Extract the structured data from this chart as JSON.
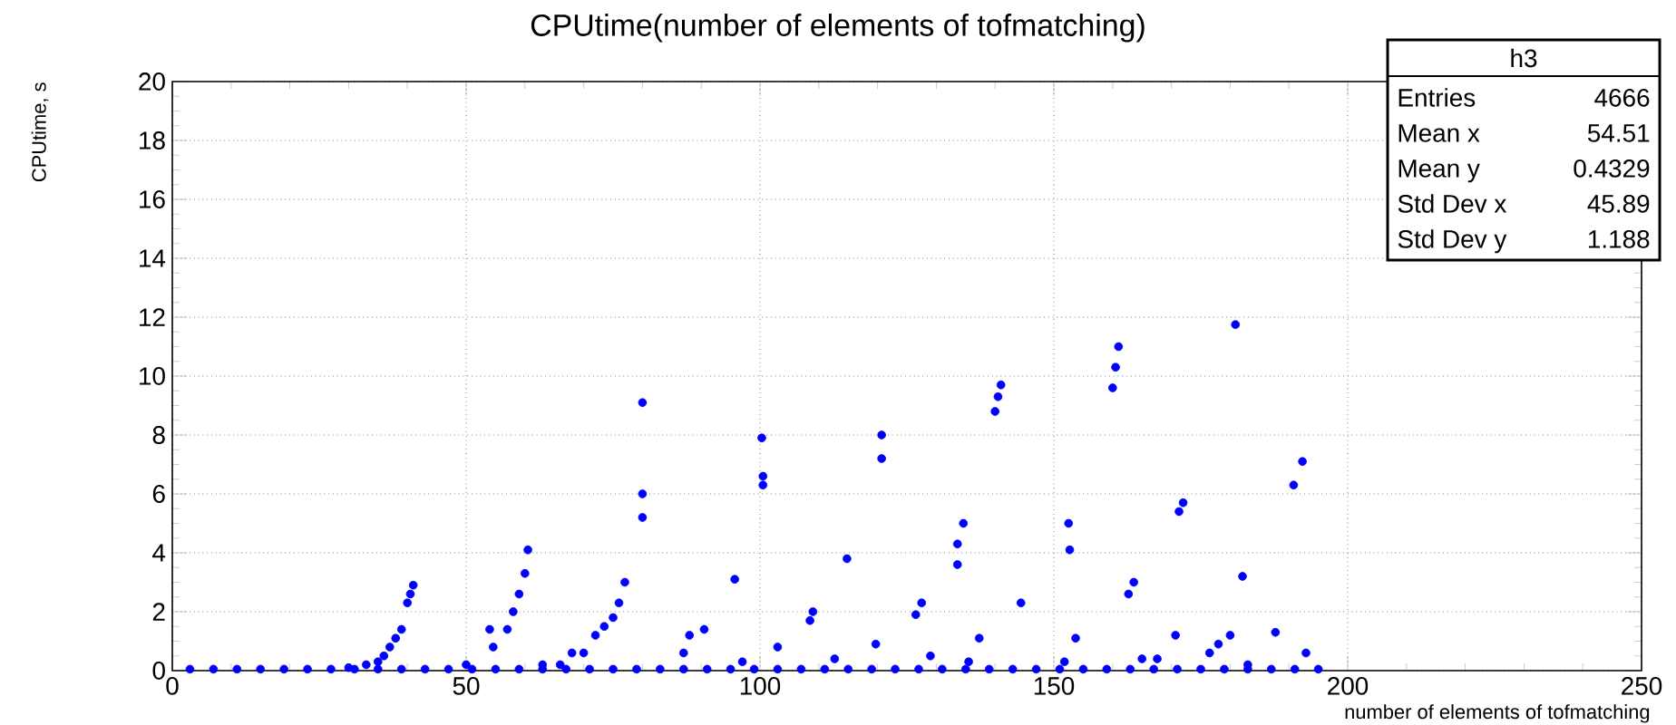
{
  "chart_data": {
    "type": "scatter",
    "title": "CPUtime(number of elements of tofmatching)",
    "xlabel": "number of elements of tofmatching",
    "ylabel": "CPUtime, s",
    "annotations": [
      "h3",
      "Entries",
      "4666",
      "Mean x",
      "54.51",
      "Mean y",
      "0.4329",
      "Std Dev x",
      "45.89",
      "Std Dev y",
      "1.188"
    ],
    "xlim": [
      0,
      250
    ],
    "xticks": [
      0,
      50,
      100,
      150,
      200,
      250
    ],
    "ylim": [
      0,
      20
    ],
    "yticks": [
      0,
      2,
      4,
      6,
      8,
      10,
      12,
      14,
      16,
      18,
      20
    ],
    "grid": true,
    "marker": "circle",
    "series": [
      {
        "color": "#0000ff",
        "x": [
          3,
          7,
          11,
          15,
          19,
          23,
          27,
          31,
          35,
          39,
          43,
          47,
          51,
          55,
          59,
          63,
          67,
          71,
          75,
          79,
          83,
          87,
          91,
          95,
          99,
          103,
          107,
          111,
          115,
          119,
          123,
          127,
          131,
          135,
          139,
          143,
          147,
          151,
          155,
          159,
          163,
          167,
          171,
          175,
          179,
          183,
          187,
          191,
          195,
          30,
          33,
          35,
          36,
          37,
          38,
          39,
          40,
          40.5,
          41,
          50,
          54,
          54.6,
          57,
          58,
          59,
          60,
          60.5,
          63,
          66,
          68,
          70,
          72,
          73.5,
          75,
          76,
          77,
          80,
          80,
          80,
          87,
          88,
          90.5,
          95.7,
          97,
          100.3,
          100.5,
          100.5,
          103,
          108.5,
          109,
          112.7,
          114.8,
          119.7,
          120.7,
          120.7,
          126.5,
          127.5,
          129,
          133.6,
          133.6,
          134.6,
          135.5,
          137.3,
          140,
          140.5,
          141,
          144.4,
          151.8,
          152.5,
          152.7,
          153.7,
          160,
          160.5,
          161,
          162.7,
          163.6,
          165,
          167.6,
          170.7,
          171.3,
          172,
          176.5,
          178,
          180,
          180.9,
          182.1,
          183,
          187.7,
          190.8,
          192.3,
          192.9
        ],
        "values": [
          0.05,
          0.05,
          0.05,
          0.05,
          0.05,
          0.05,
          0.05,
          0.05,
          0.05,
          0.05,
          0.05,
          0.05,
          0.05,
          0.05,
          0.05,
          0.05,
          0.05,
          0.05,
          0.05,
          0.05,
          0.05,
          0.05,
          0.05,
          0.05,
          0.05,
          0.05,
          0.05,
          0.05,
          0.05,
          0.05,
          0.05,
          0.05,
          0.05,
          0.05,
          0.05,
          0.05,
          0.05,
          0.05,
          0.05,
          0.05,
          0.05,
          0.05,
          0.05,
          0.05,
          0.05,
          0.05,
          0.05,
          0.05,
          0.05,
          0.1,
          0.2,
          0.3,
          0.5,
          0.8,
          1.1,
          1.4,
          2.3,
          2.6,
          2.9,
          0.2,
          1.4,
          0.8,
          1.4,
          2,
          2.6,
          3.3,
          4.1,
          0.2,
          0.2,
          0.6,
          0.6,
          1.2,
          1.5,
          1.8,
          2.3,
          3,
          9.1,
          6,
          5.2,
          0.6,
          1.2,
          1.4,
          3.1,
          0.3,
          7.9,
          6.6,
          6.3,
          0.8,
          1.7,
          2,
          0.4,
          3.8,
          0.9,
          7.2,
          8,
          1.9,
          2.3,
          0.5,
          3.6,
          4.3,
          5,
          0.3,
          1.1,
          8.8,
          9.3,
          9.7,
          2.3,
          0.3,
          5,
          4.1,
          1.1,
          9.6,
          10.3,
          11,
          2.6,
          3,
          0.4,
          0.4,
          1.2,
          5.4,
          5.7,
          0.6,
          0.9,
          1.2,
          11.75,
          3.2,
          0.2,
          1.3,
          6.3,
          7.1,
          0.6
        ]
      }
    ]
  }
}
